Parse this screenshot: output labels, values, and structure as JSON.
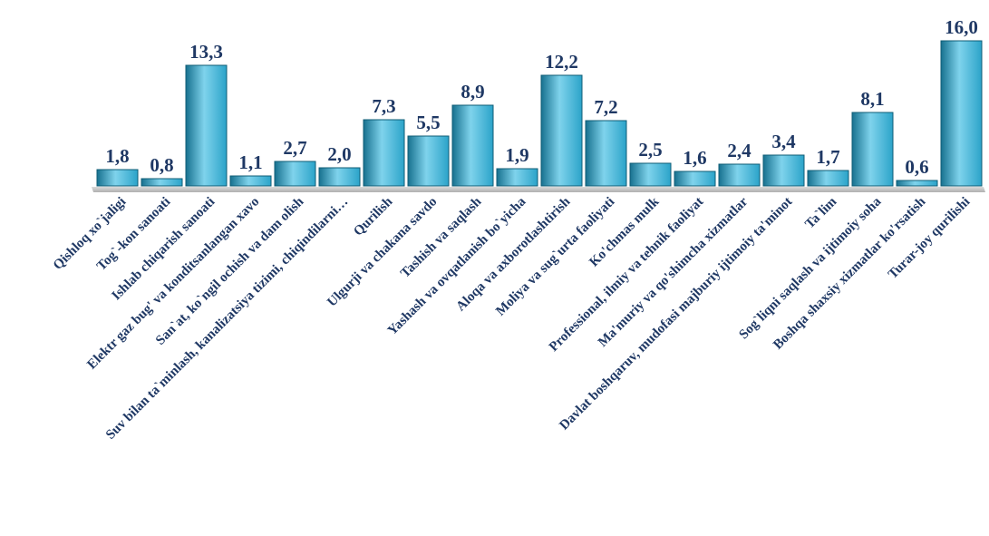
{
  "chart_data": {
    "type": "bar",
    "title": "",
    "xlabel": "",
    "ylabel": "",
    "ylim": [
      0,
      16
    ],
    "grid": false,
    "legend": "none",
    "bar_color": "#2BA3C9",
    "bar_color_light": "#7FD3EC",
    "bar_color_dark": "#17718F",
    "label_color": "#1F3864",
    "categories": [
      "Qishloq xo`jaligi",
      "Tog`-kon sanoati",
      "Ishlab chiqarish sanoati",
      "Elektr gaz bug' va konditsanlangan xavo",
      "San`at, ko`ngil ochish va dam olish",
      "Suv bilan ta`minlash, kanalizatsiya tizimi, chiqindilarni…",
      "Qurilish",
      "Ulgurji va chakana savdo",
      "Tashish va saqlash",
      "Yashash va ovqatlanish bo`yicha",
      "Aloqa va axborotlashtirish",
      "Moliya va sug`urta faoliyati",
      "Ko'chmas mulk",
      "Professional, ilmiy va tehnik faoliyat",
      "Ma'muriy va qo'shimcha xizmatlar",
      "Davlat boshqaruv, mudofasi majburiy ijtimoiy ta'minot",
      "Ta`lim",
      "Sog`liqni saqlash va ijtimoiy soha",
      "Boshqa shaxsiy xizmatlar ko'rsatish",
      "Turar-joy qurilishi"
    ],
    "values": [
      1.8,
      0.8,
      13.3,
      1.1,
      2.7,
      2.0,
      7.3,
      5.5,
      8.9,
      1.9,
      12.2,
      7.2,
      2.5,
      1.6,
      2.4,
      3.4,
      1.7,
      8.1,
      0.6,
      16.0
    ],
    "value_labels": [
      "1,8",
      "0,8",
      "13,3",
      "1,1",
      "2,7",
      "2,0",
      "7,3",
      "5,5",
      "8,9",
      "1,9",
      "12,2",
      "7,2",
      "2,5",
      "1,6",
      "2,4",
      "3,4",
      "1,7",
      "8,1",
      "0,6",
      "16,0"
    ]
  }
}
